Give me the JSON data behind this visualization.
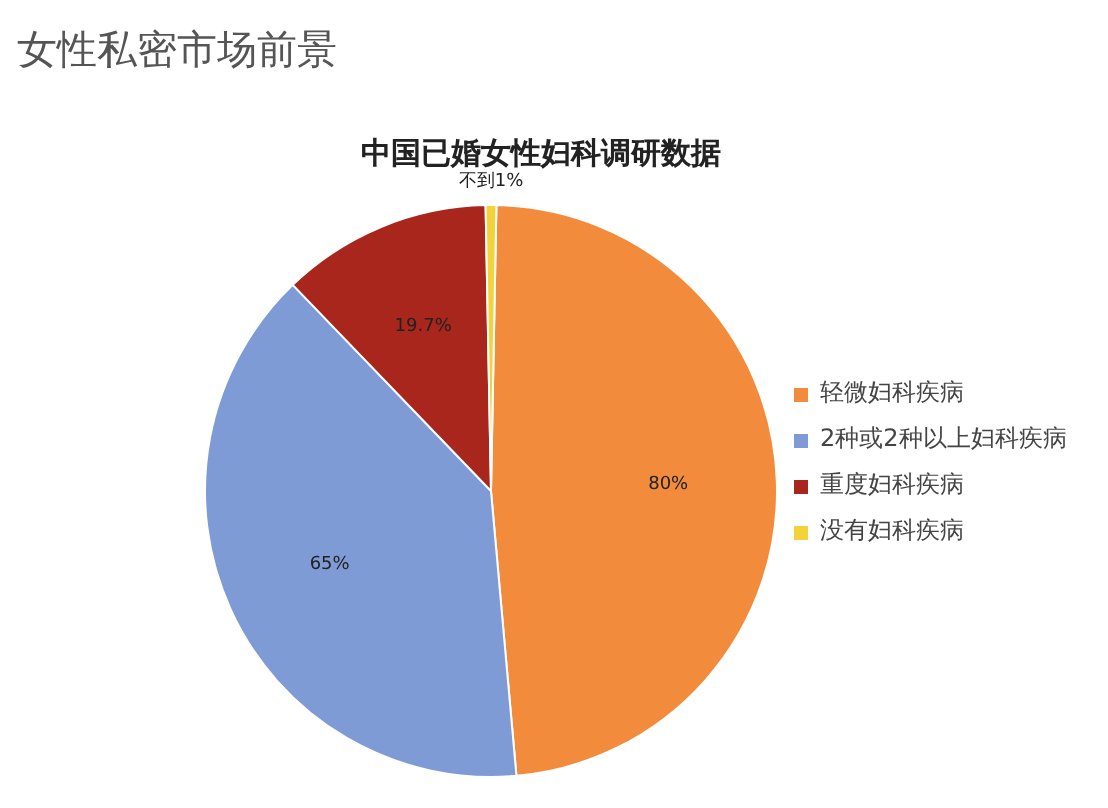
{
  "chart_data": {
    "type": "pie",
    "title": "女性私密市场前景",
    "subtitle": "中国已婚女性妇科调研数据",
    "categories": [
      "轻微妇科疾病",
      "2种或2种以上妇科疾病",
      "重度妇科疾病",
      "没有妇科疾病"
    ],
    "values": [
      80,
      65,
      19.7,
      1
    ],
    "value_labels": [
      "80%",
      "65%",
      "19.7%",
      "不到1%"
    ],
    "colors": [
      "#f28c3c",
      "#7f9bd6",
      "#a9261c",
      "#f3d23a"
    ],
    "legend": "right"
  }
}
